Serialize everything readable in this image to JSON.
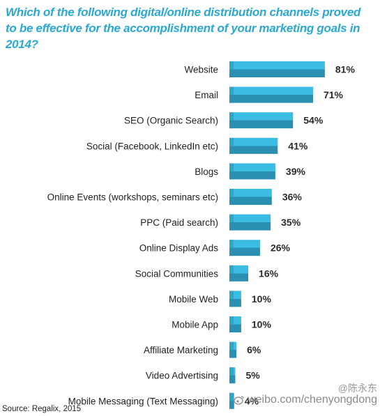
{
  "header": {
    "title": "Which of the following digital/online distribution channels proved to be effective for the accomplishment of your marketing goals in 2014?"
  },
  "footer": {
    "source": "Source: Regalix, 2015",
    "watermark_text": "weibo.com/chenyongdong",
    "watermark_handle": "@陈永东"
  },
  "colors": {
    "title": "#2aa8d4",
    "bar_light": "#3bbde3",
    "bar_dark": "#2a8fb0"
  },
  "chart_data": {
    "type": "bar",
    "orientation": "horizontal",
    "title": "Which of the following digital/online distribution channels proved to be effective for the accomplishment of your marketing goals in 2014?",
    "categories": [
      "Website",
      "Email",
      "SEO (Organic Search)",
      "Social (Facebook, LinkedIn etc)",
      "Blogs",
      "Online Events (workshops, seminars etc)",
      "PPC (Paid search)",
      "Online Display Ads",
      "Social Communities",
      "Mobile Web",
      "Mobile App",
      "Affiliate Marketing",
      "Video Advertising",
      "Mobile Messaging (Text Messaging)"
    ],
    "values": [
      81,
      71,
      54,
      41,
      39,
      36,
      35,
      26,
      16,
      10,
      10,
      6,
      5,
      4
    ],
    "value_labels": [
      "81%",
      "71%",
      "54%",
      "41%",
      "39%",
      "36%",
      "35%",
      "26%",
      "16%",
      "10%",
      "10%",
      "6%",
      "5%",
      "4%"
    ],
    "unit": "%",
    "xlim": [
      0,
      100
    ],
    "grid": false,
    "legend": "none"
  }
}
